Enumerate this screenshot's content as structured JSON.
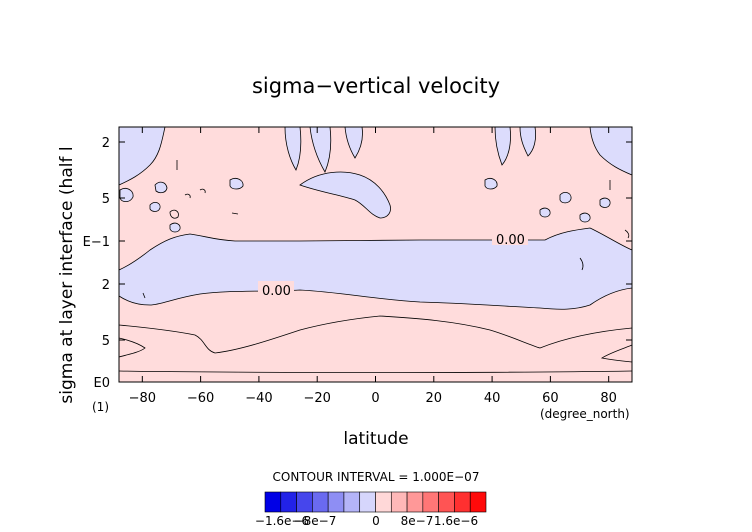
{
  "chart_data": {
    "type": "contour",
    "title": "sigma−vertical velocity",
    "xlabel": "latitude",
    "ylabel": "sigma at layer interface (half l",
    "x_unit": "(degree_north)",
    "y_unit": "(1)",
    "xlim": [
      -88,
      88
    ],
    "x_ticks": [
      -80,
      -60,
      -40,
      -20,
      0,
      20,
      40,
      60,
      80
    ],
    "y_scale": "log",
    "y_axis_direction": "decreasing upward",
    "y_ticks": [
      "2",
      "5",
      "E−1",
      "2",
      "5",
      "E0"
    ],
    "grid": false,
    "contour_labels": [
      "0.00",
      "0.00"
    ],
    "contour_interval_text": "CONTOUR INTERVAL = 1.000E−07",
    "colorbar": {
      "placement": "bottom",
      "tick_labels": [
        "−1.6e−6",
        "−8e−7",
        "0",
        "8e−7",
        "1.6e−6"
      ],
      "colors": [
        "#0000e6",
        "#2222e8",
        "#4646ec",
        "#6a6af0",
        "#8e8ef4",
        "#b4b4f8",
        "#d6d6fc",
        "#ffd8d8",
        "#ffb8b8",
        "#ff9898",
        "#ff7676",
        "#ff5454",
        "#ff3030",
        "#ff0a0a"
      ]
    },
    "positive_color": "#ffdcdc",
    "negative_color": "#dcdcfc"
  }
}
